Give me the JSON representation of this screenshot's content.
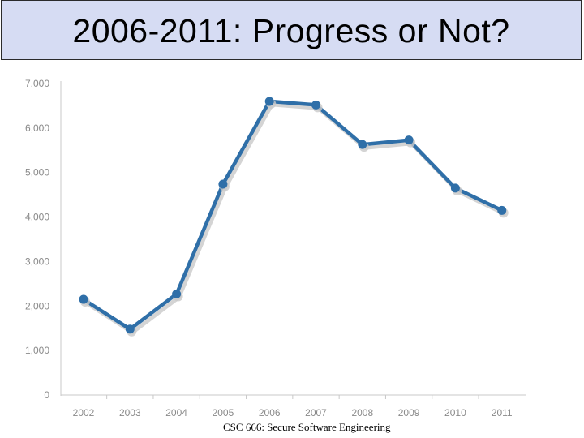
{
  "slide": {
    "title": "2006-2011: Progress or Not?",
    "footer": "CSC 666: Secure Software Engineering"
  },
  "colors": {
    "line": "#2f6fa8",
    "shadow": "#c9c9c9",
    "axis": "#c8c8c8",
    "tick_text": "#8a8a8a",
    "title_bg": "#d6dcf3"
  },
  "chart_data": {
    "type": "line",
    "title": "",
    "xlabel": "",
    "ylabel": "",
    "categories": [
      "2002",
      "2003",
      "2004",
      "2005",
      "2006",
      "2007",
      "2008",
      "2009",
      "2010",
      "2011"
    ],
    "series": [
      {
        "values": [
          2150,
          1480,
          2270,
          4740,
          6600,
          6520,
          5630,
          5730,
          4650,
          4150
        ]
      }
    ],
    "ylim": [
      0,
      7000
    ],
    "yticks": [
      0,
      1000,
      2000,
      3000,
      4000,
      5000,
      6000,
      7000
    ],
    "ytick_labels": [
      "0",
      "1,000",
      "2,000",
      "3,000",
      "4,000",
      "5,000",
      "6,000",
      "7,000"
    ],
    "grid": false,
    "legend": "none"
  }
}
